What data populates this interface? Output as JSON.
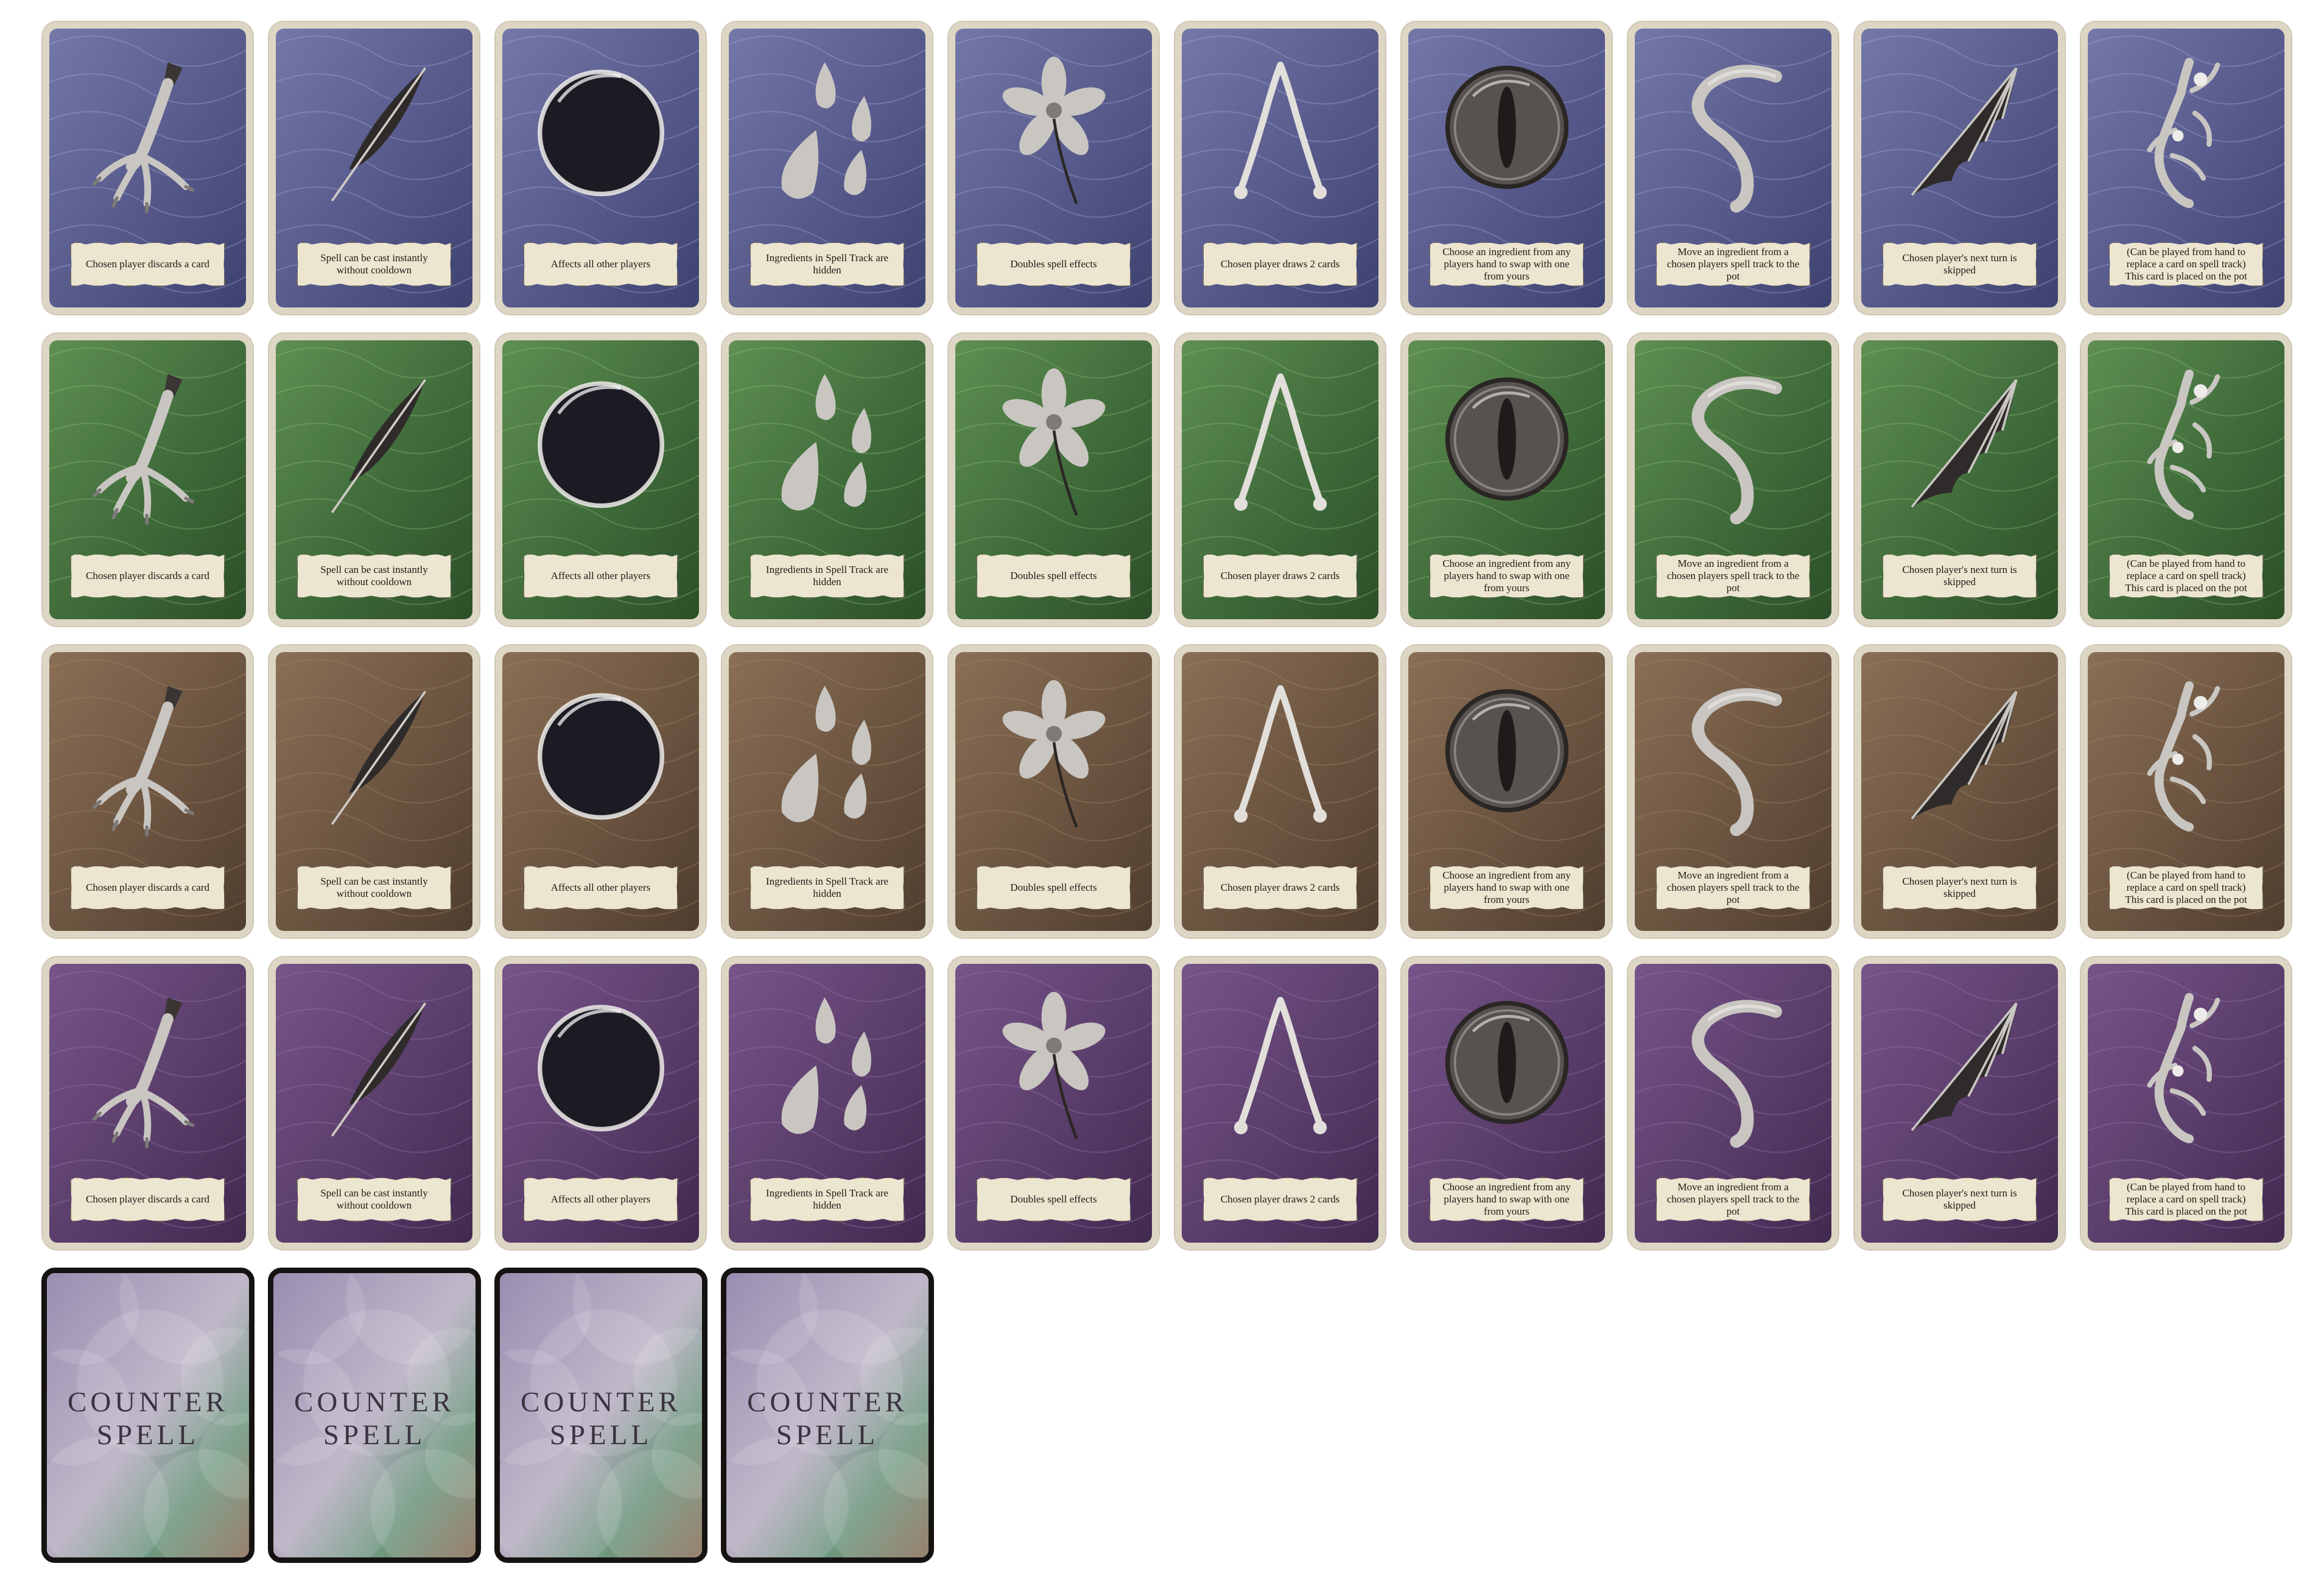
{
  "decks": [
    {
      "theme": "storm",
      "colors": {
        "base": "#56598a",
        "light": "#7478a8",
        "dark": "#3e4270",
        "glow": "#a9aee0"
      }
    },
    {
      "theme": "grass",
      "colors": {
        "base": "#3f6b3a",
        "light": "#5f8f52",
        "dark": "#2c4f28",
        "glow": "#8fbf7c"
      }
    },
    {
      "theme": "wood",
      "colors": {
        "base": "#6b5440",
        "light": "#8a6f55",
        "dark": "#4f3d2e",
        "glow": "#a58a6c"
      }
    },
    {
      "theme": "velvet",
      "colors": {
        "base": "#5a3d6a",
        "light": "#77548a",
        "dark": "#41294f",
        "glow": "#9a7aaf"
      }
    }
  ],
  "ingredients": [
    {
      "icon": "claw-icon",
      "text": "Chosen player discards a card"
    },
    {
      "icon": "feather-icon",
      "text": "Spell can be cast instantly without cooldown"
    },
    {
      "icon": "orb-icon",
      "text": "Affects all other players"
    },
    {
      "icon": "drops-icon",
      "text": "Ingredients in Spell Track are hidden"
    },
    {
      "icon": "flower-icon",
      "text": "Doubles spell effects"
    },
    {
      "icon": "wishbone-icon",
      "text": "Chosen player draws 2 cards"
    },
    {
      "icon": "eye-icon",
      "text": "Choose an ingredient from any players hand to swap with one from yours"
    },
    {
      "icon": "tail-icon",
      "text": "Move an ingredient from a chosen players spell track to the pot"
    },
    {
      "icon": "bat-wing-icon",
      "text": "Chosen player's next turn is skipped"
    },
    {
      "icon": "mandrake-icon",
      "text": "(Can be played from hand to replace a card on spell track) This card is placed on the pot"
    }
  ],
  "counter_spell": {
    "count": 4,
    "title_line1": "COUNTER",
    "title_line2": "SPELL",
    "colors": {
      "border": "#151311",
      "purple": "#8c7ea6",
      "green": "#6f9880",
      "brown": "#8a705a"
    }
  }
}
